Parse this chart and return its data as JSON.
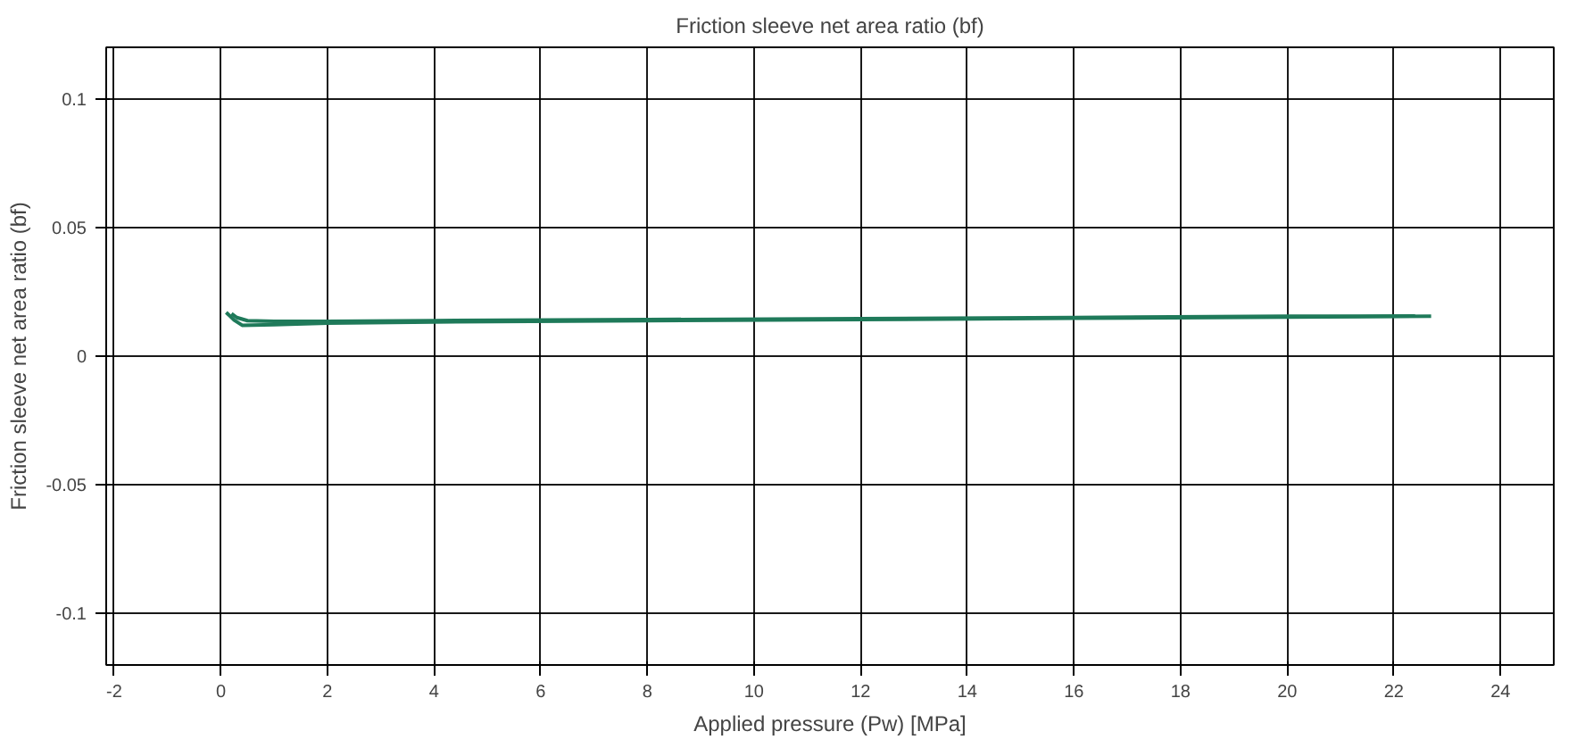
{
  "chart_data": {
    "type": "line",
    "title": "Friction sleeve net area ratio (bf)",
    "xlabel": "Applied pressure (Pw) [MPa]",
    "ylabel": "Friction sleeve net area ratio (bf)",
    "series": [
      {
        "color": "#1f7a5a",
        "x": [
          0.1,
          0.25,
          0.4,
          1,
          2,
          4,
          8,
          12,
          16,
          20,
          22.7
        ],
        "values": [
          0.017,
          0.014,
          0.012,
          0.0122,
          0.0128,
          0.0133,
          0.0138,
          0.0142,
          0.0147,
          0.0152,
          0.0155
        ]
      },
      {
        "color": "#1f7a5a",
        "x": [
          0.2,
          0.3,
          0.5,
          1,
          2,
          4,
          8,
          12,
          16,
          20,
          22.4
        ],
        "values": [
          0.0165,
          0.015,
          0.0138,
          0.0135,
          0.0135,
          0.0138,
          0.0142,
          0.0146,
          0.015,
          0.0155,
          0.0156
        ]
      }
    ],
    "xlim": [
      -2.15,
      25
    ],
    "ylim": [
      -0.12,
      0.12
    ],
    "xticks": [
      -2,
      0,
      2,
      4,
      6,
      8,
      10,
      12,
      14,
      16,
      18,
      20,
      22,
      24
    ],
    "yticks": [
      -0.1,
      -0.05,
      0,
      0.05,
      0.1
    ],
    "grid": true,
    "marker": "none",
    "line_style": "solid"
  }
}
